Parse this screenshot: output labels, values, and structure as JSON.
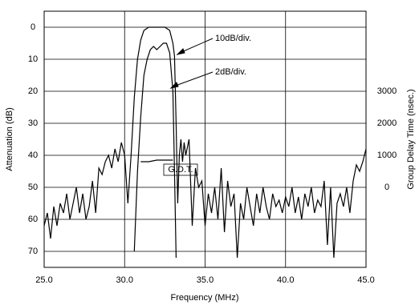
{
  "chart_data": {
    "type": "line",
    "x_label": "Frequency (MHz)",
    "y_label": "Attenuation (dB)",
    "y2_label": "Group Delay Time (nsec.)",
    "xlim": [
      25,
      45
    ],
    "xticks": [
      {
        "value": 25,
        "label": "25.0"
      },
      {
        "value": 30,
        "label": "30.0"
      },
      {
        "value": 35,
        "label": "35.0"
      },
      {
        "value": 40,
        "label": "40.0"
      },
      {
        "value": 45,
        "label": "45.0"
      }
    ],
    "ylim": [
      75,
      -5
    ],
    "yticks": [
      0,
      10,
      20,
      30,
      40,
      50,
      60,
      70
    ],
    "y2lim": [
      -2500,
      5500
    ],
    "y2ticks": [
      0,
      1000,
      2000,
      3000
    ],
    "grid": true,
    "series": [
      {
        "name": "10dB/div.",
        "color": "#000000",
        "x": [
          25.0,
          25.2,
          25.4,
          25.6,
          25.8,
          26.0,
          26.2,
          26.4,
          26.6,
          26.8,
          27.0,
          27.2,
          27.4,
          27.6,
          27.8,
          28.0,
          28.2,
          28.4,
          28.6,
          28.8,
          29.0,
          29.2,
          29.4,
          29.6,
          29.8,
          30.0,
          30.2,
          30.4,
          30.6,
          30.8,
          31.0,
          31.2,
          31.5,
          32.0,
          32.5,
          32.8,
          33.0,
          33.1,
          33.2,
          33.3,
          33.4,
          33.5,
          33.6,
          33.7,
          33.8,
          34.0,
          34.2,
          34.4,
          34.6,
          34.8,
          35.0,
          35.2,
          35.4,
          35.6,
          35.8,
          36.0,
          36.2,
          36.4,
          36.6,
          36.8,
          37.0,
          37.2,
          37.4,
          37.6,
          37.8,
          38.0,
          38.2,
          38.4,
          38.6,
          38.8,
          39.0,
          39.2,
          39.4,
          39.6,
          39.8,
          40.0,
          40.2,
          40.4,
          40.6,
          40.8,
          41.0,
          41.2,
          41.4,
          41.6,
          41.8,
          42.0,
          42.2,
          42.4,
          42.6,
          42.8,
          43.0,
          43.2,
          43.4,
          43.6,
          43.8,
          44.0,
          44.2,
          44.4,
          44.6,
          44.8,
          45.0
        ],
        "values": [
          62,
          58,
          66,
          56,
          62,
          55,
          58,
          52,
          60,
          55,
          50,
          58,
          52,
          60,
          56,
          48,
          58,
          44,
          46,
          42,
          40,
          44,
          38,
          42,
          36,
          40,
          55,
          40,
          22,
          10,
          4,
          1,
          0,
          0,
          0,
          1,
          5,
          9,
          30,
          55,
          40,
          35,
          42,
          36,
          40,
          35,
          62,
          44,
          50,
          48,
          62,
          52,
          58,
          50,
          60,
          44,
          64,
          48,
          56,
          52,
          72,
          55,
          60,
          50,
          56,
          62,
          52,
          58,
          50,
          56,
          60,
          52,
          56,
          54,
          58,
          53,
          56,
          50,
          58,
          53,
          60,
          52,
          56,
          50,
          58,
          54,
          56,
          48,
          68,
          50,
          72,
          55,
          52,
          56,
          50,
          58,
          48,
          43,
          45,
          42,
          38
        ]
      },
      {
        "name": "2dB/div.",
        "color": "#000000",
        "x": [
          30.6,
          30.8,
          31.0,
          31.2,
          31.4,
          31.6,
          31.8,
          32.0,
          32.2,
          32.4,
          32.6,
          32.8,
          33.0,
          33.1,
          33.2
        ],
        "values": [
          70,
          45,
          28,
          15,
          10,
          7,
          6,
          7,
          6,
          5,
          5,
          8,
          20,
          45,
          72
        ]
      },
      {
        "name": "G.D.T.",
        "color": "#000000",
        "axis": "y2",
        "x": [
          31.0,
          31.5,
          32.0,
          32.5,
          33.0
        ],
        "values": [
          800,
          800,
          850,
          850,
          850
        ]
      }
    ]
  }
}
